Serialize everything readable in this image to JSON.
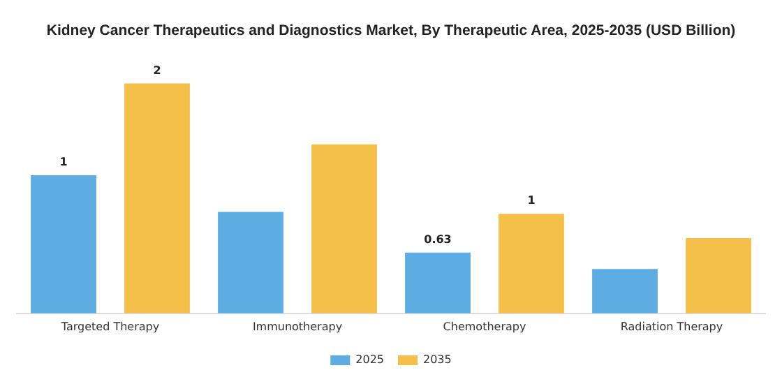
{
  "chart_data": {
    "type": "bar",
    "title": "Kidney Cancer Therapeutics and Diagnostics Market, By Therapeutic Area, 2025-2035 (USD Billion)",
    "categories": [
      "Targeted Therapy",
      "Immunotherapy",
      "Chemotherapy",
      "Radiation Therapy"
    ],
    "series": [
      {
        "name": "2025",
        "color": "#5dade2",
        "values": [
          1.43,
          1.05,
          0.63,
          0.46
        ],
        "value_labels": [
          "1",
          null,
          "0.63",
          null
        ]
      },
      {
        "name": "2035",
        "color": "#f5c04a",
        "values": [
          2.38,
          1.75,
          1.03,
          0.78
        ],
        "value_labels": [
          "2",
          null,
          "1",
          null
        ]
      }
    ],
    "legend": "bottom",
    "grid": false
  }
}
